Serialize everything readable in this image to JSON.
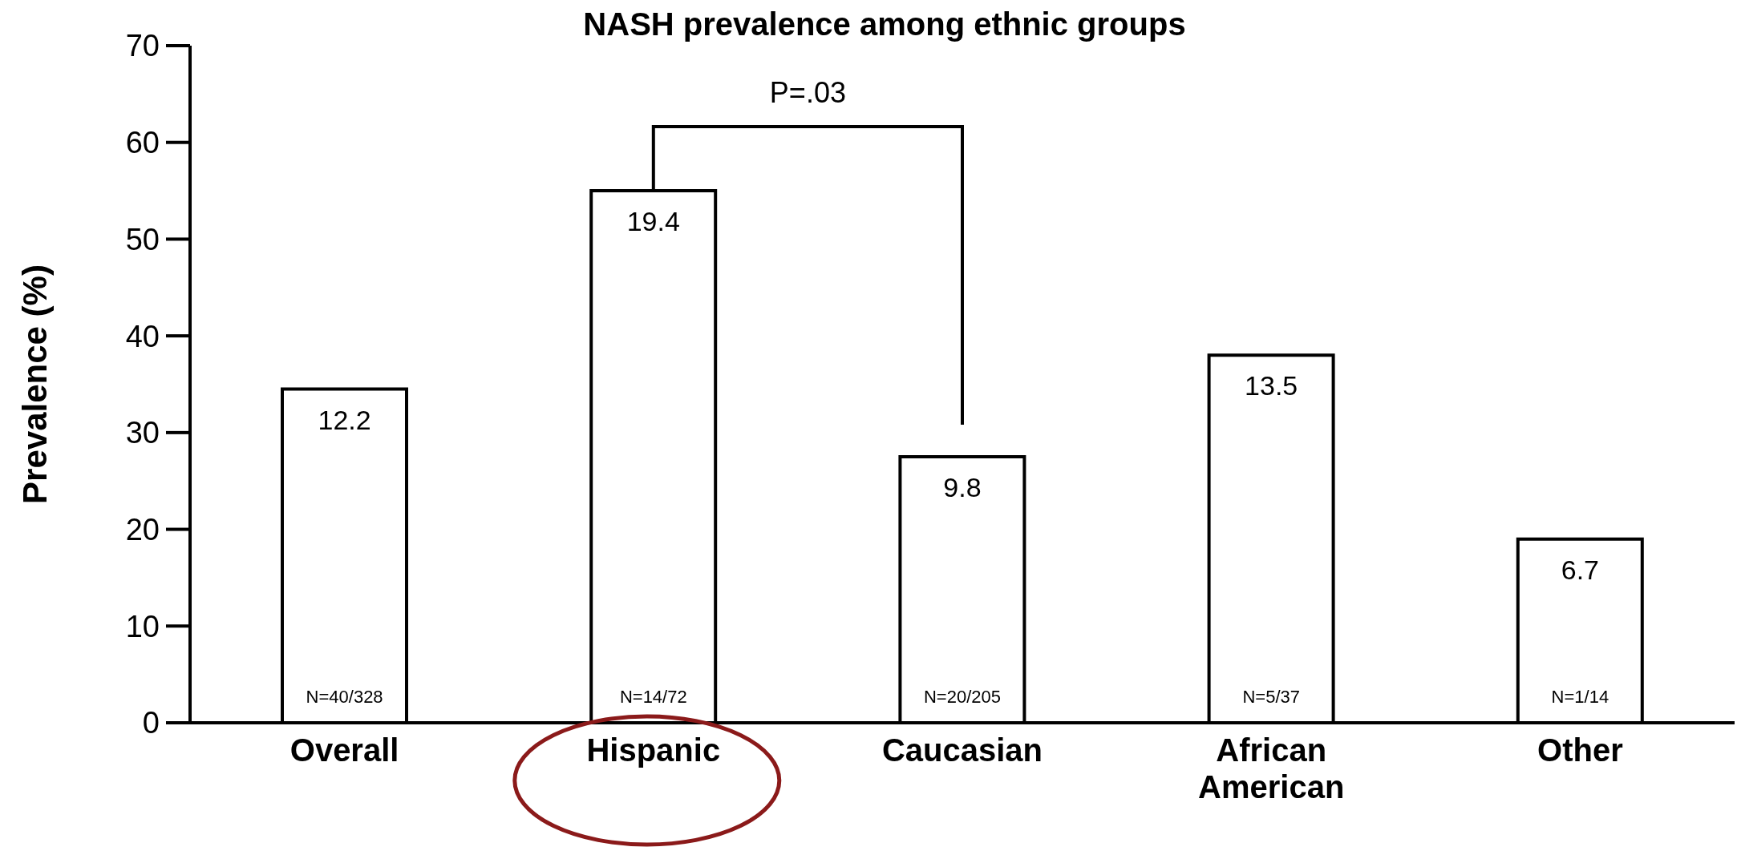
{
  "chart_data": {
    "type": "bar",
    "title": "NASH prevalence among ethnic groups",
    "ylabel": "Prevalence (%)",
    "categories": [
      "Overall",
      "Hispanic",
      "Caucasian",
      "African American",
      "Other"
    ],
    "values": [
      34.5,
      55,
      27.5,
      38,
      19
    ],
    "color": "#ffffff",
    "ylim": [
      0,
      70
    ],
    "yticks": [
      0,
      10,
      20,
      30,
      40,
      50,
      60,
      70
    ],
    "grid": false,
    "legend": false,
    "annotations": [
      "P=.03",
      "N=40/328",
      "N=14/72",
      "N=20/205",
      "N=5/37",
      "N=1/14",
      {
        "text": "12.2",
        "x": "Overall",
        "y": 34.5
      },
      {
        "text": "19.4",
        "x": "Hispanic",
        "y": 55
      },
      {
        "text": "9.8",
        "x": "Caucasian",
        "y": 27.5
      },
      {
        "text": "13.5",
        "x": "African American",
        "y": 38
      },
      {
        "text": "6.7",
        "x": "Other",
        "y": 19
      }
    ]
  }
}
